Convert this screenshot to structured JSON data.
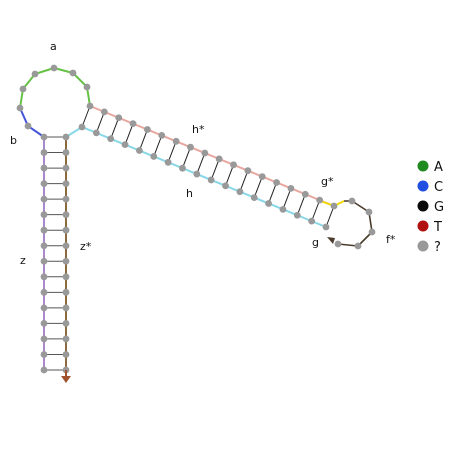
{
  "labels": {
    "a": "a",
    "b": "b",
    "z": "z",
    "z_star": "z*",
    "h": "h",
    "h_star": "h*",
    "g_star": "g*",
    "g": "g",
    "f_star": "f*"
  },
  "legend": [
    {
      "label": "A",
      "color": "#1f8a1f"
    },
    {
      "label": "C",
      "color": "#1f4fe0"
    },
    {
      "label": "G",
      "color": "#0a0a0a"
    },
    {
      "label": "T",
      "color": "#b01010"
    },
    {
      "label": "?",
      "color": "#999999"
    }
  ],
  "colors": {
    "node": "#999999",
    "pair_line": "#222222",
    "segment_a": "#66c244",
    "segment_b": "#4455dd",
    "segment_z": "#aa88cc",
    "segment_z_star": "#8b6a3e",
    "segment_h_star": "#e8a8a0",
    "segment_h": "#88d8e8",
    "segment_g_star": "#f0d800",
    "segment_f_star": "#4a3c2c",
    "arrow_z_star": "#a0522d"
  }
}
